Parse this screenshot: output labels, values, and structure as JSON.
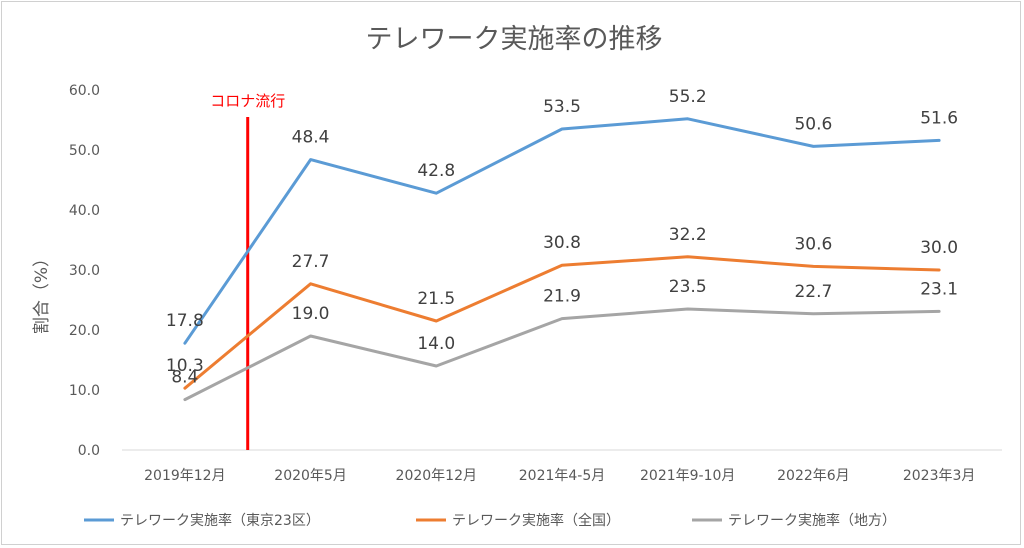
{
  "chart_data": {
    "type": "line",
    "title": "テレワーク実施率の推移",
    "ylabel": "割合（%）",
    "xlabel": "",
    "ylim": [
      0,
      60
    ],
    "yticks": [
      "0.0",
      "10.0",
      "20.0",
      "30.0",
      "40.0",
      "50.0",
      "60.0"
    ],
    "grid": false,
    "legend_position": "bottom",
    "categories": [
      "2019年12月",
      "2020年5月",
      "2020年12月",
      "2021年4-5月",
      "2021年9-10月",
      "2022年6月",
      "2023年3月"
    ],
    "series": [
      {
        "name": "テレワーク実施率（東京23区）",
        "color": "#5b9bd5",
        "values": [
          17.8,
          48.4,
          42.8,
          53.5,
          55.2,
          50.6,
          51.6
        ],
        "labels": [
          "17.8",
          "48.4",
          "42.8",
          "53.5",
          "55.2",
          "50.6",
          "51.6"
        ]
      },
      {
        "name": "テレワーク実施率（全国）",
        "color": "#ed7d31",
        "values": [
          10.3,
          27.7,
          21.5,
          30.8,
          32.2,
          30.6,
          30.0
        ],
        "labels": [
          "10.3",
          "27.7",
          "21.5",
          "30.8",
          "32.2",
          "30.6",
          "30.0"
        ]
      },
      {
        "name": "テレワーク実施率（地方）",
        "color": "#a5a5a5",
        "values": [
          8.4,
          19.0,
          14.0,
          21.9,
          23.5,
          22.7,
          23.1
        ],
        "labels": [
          "8.4",
          "19.0",
          "14.0",
          "21.9",
          "23.5",
          "22.7",
          "23.1"
        ]
      }
    ],
    "annotation": {
      "text": "コロナ流行",
      "color": "#ff0000"
    }
  }
}
